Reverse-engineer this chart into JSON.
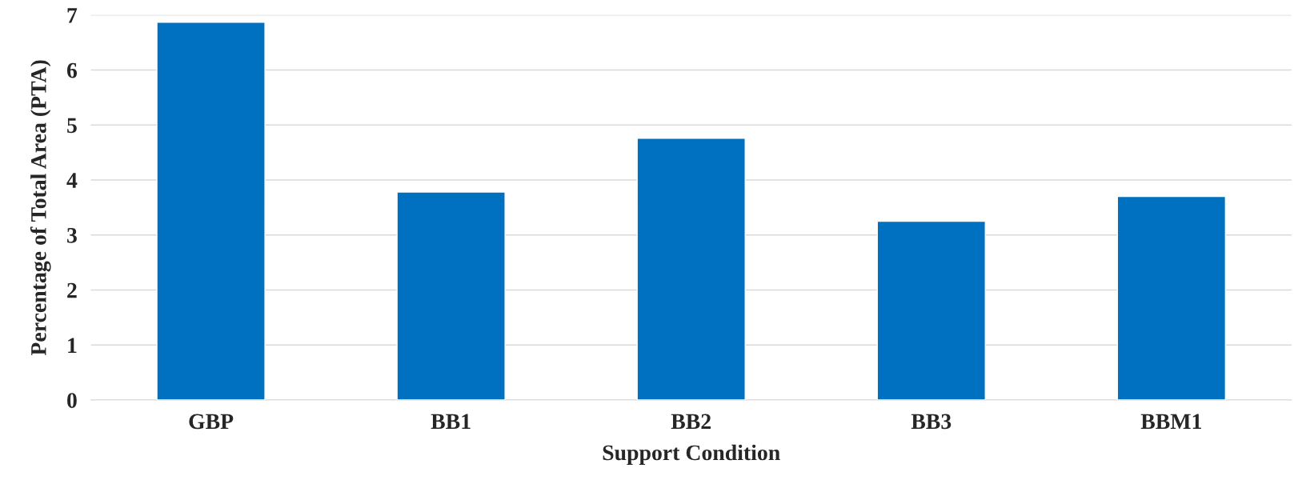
{
  "chart_data": {
    "type": "bar",
    "xlabel": "Support Condition",
    "ylabel": "Percentage of Total Area (PTA)",
    "categories": [
      "GBP",
      "BB1",
      "BB2",
      "BB3",
      "BBM1"
    ],
    "values": [
      6.87,
      3.78,
      4.76,
      3.25,
      3.7
    ],
    "color": "#0070c0",
    "ylim": [
      0,
      7
    ],
    "yticks": [
      0,
      1,
      2,
      3,
      4,
      5,
      6,
      7
    ],
    "grid": "y"
  }
}
